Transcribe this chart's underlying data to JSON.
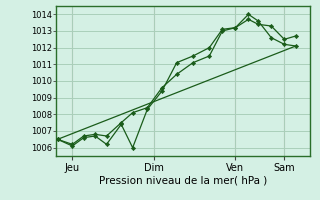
{
  "bg_color": "#d4f0e4",
  "plot_bg_color": "#d4f0e4",
  "grid_color": "#aacfba",
  "vline_color": "#c8a0a0",
  "line_color": "#1a5c1a",
  "marker_color": "#1a5c1a",
  "xlabel": "Pression niveau de la mer( hPa )",
  "xlabel_fontsize": 7.5,
  "ylim": [
    1005.5,
    1014.5
  ],
  "yticks": [
    1006,
    1007,
    1008,
    1009,
    1010,
    1011,
    1012,
    1013,
    1014
  ],
  "ytick_fontsize": 6,
  "xtick_labels": [
    "Jeu",
    "Dim",
    "Ven",
    "Sam"
  ],
  "xtick_positions": [
    0.5,
    3.0,
    5.5,
    7.0
  ],
  "xtick_fontsize": 7,
  "xlim": [
    0.0,
    7.8
  ],
  "series1_x": [
    0.05,
    0.5,
    0.85,
    1.2,
    1.55,
    2.0,
    2.35,
    2.8,
    3.25,
    3.7,
    4.2,
    4.7,
    5.1,
    5.5,
    5.9,
    6.2,
    6.6,
    7.0,
    7.35
  ],
  "series1_y": [
    1006.5,
    1006.1,
    1006.6,
    1006.7,
    1006.2,
    1007.4,
    1006.0,
    1008.3,
    1009.4,
    1011.1,
    1011.5,
    1012.0,
    1013.1,
    1013.2,
    1013.7,
    1013.4,
    1013.3,
    1012.5,
    1012.7
  ],
  "series2_x": [
    0.05,
    0.5,
    0.85,
    1.2,
    1.55,
    2.0,
    2.35,
    2.8,
    3.25,
    3.7,
    4.2,
    4.7,
    5.1,
    5.5,
    5.9,
    6.2,
    6.6,
    7.0,
    7.35
  ],
  "series2_y": [
    1006.5,
    1006.2,
    1006.7,
    1006.8,
    1006.7,
    1007.5,
    1008.1,
    1008.4,
    1009.6,
    1010.4,
    1011.1,
    1011.5,
    1013.0,
    1013.2,
    1014.0,
    1013.6,
    1012.6,
    1012.2,
    1012.1
  ],
  "series3_x": [
    0.05,
    7.35
  ],
  "series3_y": [
    1006.5,
    1012.1
  ]
}
